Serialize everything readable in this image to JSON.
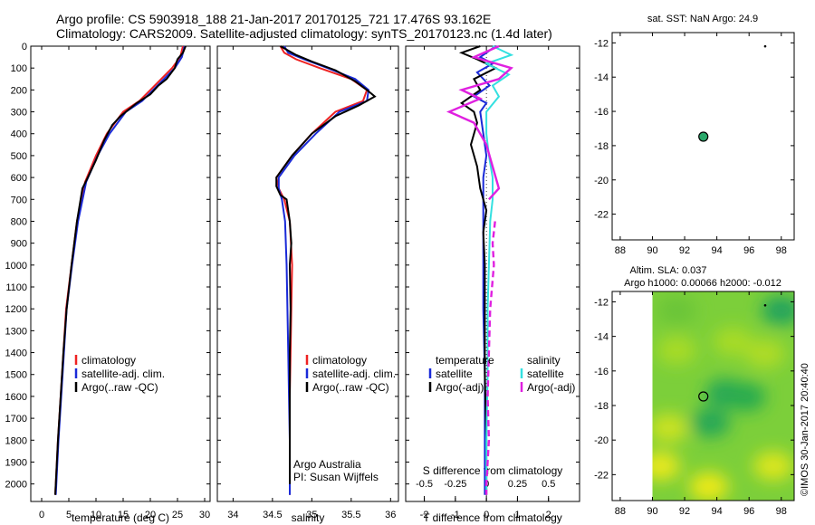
{
  "header": {
    "line1": "Argo profile: CS 5903918_188 21-Jan-2017 20170125_721 17.476S 93.162E",
    "line2": "Climatology: CARS2009. Satellite-adjusted climatology: synTS_20170123.nc (1.4d later)"
  },
  "watermark": "©IMOS 30-Jan-2017 20:40:40",
  "colors": {
    "climatology": "#ee2222",
    "satellite": "#1a2ad8",
    "argo": "#000000",
    "sat_cyan": "#33e0e0",
    "argo_magenta": "#e020e0"
  },
  "chart_data": [
    {
      "id": "temperature",
      "type": "line",
      "xlabel": "temperature (deg C)",
      "xlim": [
        -2,
        31
      ],
      "xticks": [
        0,
        5,
        10,
        15,
        20,
        25,
        30
      ],
      "ylim": [
        0,
        2080
      ],
      "yticks": [
        0,
        100,
        200,
        300,
        400,
        500,
        600,
        700,
        800,
        900,
        1000,
        1100,
        1200,
        1300,
        1400,
        1500,
        1600,
        1700,
        1800,
        1900,
        2000
      ],
      "legend": [
        "climatology",
        "satellite-adj. clim.",
        "Argo(..raw -QC)"
      ],
      "series": [
        {
          "name": "climatology",
          "color": "#ee2222",
          "points": [
            [
              26.0,
              0
            ],
            [
              25.5,
              50
            ],
            [
              24,
              100
            ],
            [
              22,
              150
            ],
            [
              20,
              200
            ],
            [
              18,
              250
            ],
            [
              15,
              300
            ],
            [
              12,
              400
            ],
            [
              10,
              500
            ],
            [
              8,
              620
            ],
            [
              6.5,
              800
            ],
            [
              5.5,
              1000
            ],
            [
              4.5,
              1200
            ],
            [
              4.0,
              1400
            ],
            [
              3.5,
              1600
            ],
            [
              3.0,
              1800
            ],
            [
              2.6,
              2000
            ],
            [
              2.5,
              2050
            ]
          ]
        },
        {
          "name": "satellite-adj. clim.",
          "color": "#1a2ad8",
          "points": [
            [
              26.3,
              0
            ],
            [
              25.8,
              50
            ],
            [
              24.5,
              100
            ],
            [
              22.5,
              150
            ],
            [
              20.5,
              200
            ],
            [
              18.5,
              250
            ],
            [
              15.5,
              300
            ],
            [
              12.5,
              400
            ],
            [
              10.3,
              500
            ],
            [
              8.2,
              620
            ],
            [
              6.7,
              800
            ],
            [
              5.6,
              1000
            ],
            [
              4.6,
              1200
            ],
            [
              4.1,
              1400
            ],
            [
              3.6,
              1600
            ],
            [
              3.1,
              1800
            ],
            [
              2.7,
              2000
            ],
            [
              2.6,
              2050
            ]
          ]
        },
        {
          "name": "Argo(..raw -QC)",
          "color": "#000000",
          "points": [
            [
              26.5,
              0
            ],
            [
              26.0,
              30
            ],
            [
              25.0,
              60
            ],
            [
              24.5,
              100
            ],
            [
              23,
              150
            ],
            [
              21.5,
              180
            ],
            [
              20,
              220
            ],
            [
              17.5,
              260
            ],
            [
              14.5,
              320
            ],
            [
              13,
              360
            ],
            [
              11.5,
              430
            ],
            [
              10,
              520
            ],
            [
              8.5,
              600
            ],
            [
              7.5,
              650
            ],
            [
              6.5,
              800
            ],
            [
              5.5,
              1000
            ],
            [
              4.6,
              1200
            ],
            [
              4.0,
              1400
            ],
            [
              3.5,
              1600
            ],
            [
              3.0,
              1800
            ],
            [
              2.6,
              2000
            ],
            [
              2.5,
              2050
            ]
          ]
        }
      ]
    },
    {
      "id": "salinity",
      "type": "line",
      "xlabel": "salinity",
      "xlim": [
        33.8,
        36.1
      ],
      "xticks": [
        34,
        34.5,
        35,
        35.5,
        36
      ],
      "ylim": [
        0,
        2080
      ],
      "legend": [
        "climatology",
        "satellite-adj. clim.",
        "Argo(..raw -QC)"
      ],
      "credit": [
        "Argo Australia",
        "PI: Susan Wijffels"
      ],
      "series": [
        {
          "name": "climatology",
          "color": "#ee2222",
          "points": [
            [
              34.6,
              0
            ],
            [
              34.65,
              30
            ],
            [
              34.8,
              60
            ],
            [
              35.1,
              100
            ],
            [
              35.5,
              150
            ],
            [
              35.7,
              200
            ],
            [
              35.65,
              250
            ],
            [
              35.3,
              300
            ],
            [
              35.0,
              400
            ],
            [
              34.75,
              500
            ],
            [
              34.55,
              600
            ],
            [
              34.58,
              650
            ],
            [
              34.65,
              700
            ],
            [
              34.72,
              800
            ],
            [
              34.75,
              1000
            ],
            [
              34.74,
              1200
            ],
            [
              34.73,
              1400
            ],
            [
              34.72,
              1600
            ],
            [
              34.72,
              1800
            ],
            [
              34.72,
              2000
            ],
            [
              34.72,
              2050
            ]
          ]
        },
        {
          "name": "satellite-adj. clim.",
          "color": "#1a2ad8",
          "points": [
            [
              34.65,
              0
            ],
            [
              34.7,
              30
            ],
            [
              34.9,
              60
            ],
            [
              35.2,
              100
            ],
            [
              35.55,
              150
            ],
            [
              35.72,
              200
            ],
            [
              35.7,
              250
            ],
            [
              35.35,
              300
            ],
            [
              35.05,
              400
            ],
            [
              34.78,
              500
            ],
            [
              34.58,
              600
            ],
            [
              34.58,
              650
            ],
            [
              34.62,
              700
            ],
            [
              34.66,
              800
            ],
            [
              34.68,
              1000
            ],
            [
              34.69,
              1200
            ],
            [
              34.7,
              1400
            ],
            [
              34.71,
              1600
            ],
            [
              34.72,
              1800
            ],
            [
              34.72,
              2000
            ],
            [
              34.72,
              2050
            ]
          ]
        },
        {
          "name": "Argo(..raw -QC)",
          "color": "#000000",
          "points": [
            [
              34.6,
              0
            ],
            [
              34.8,
              40
            ],
            [
              35.0,
              70
            ],
            [
              35.3,
              110
            ],
            [
              35.55,
              160
            ],
            [
              35.7,
              200
            ],
            [
              35.8,
              230
            ],
            [
              35.6,
              270
            ],
            [
              35.3,
              320
            ],
            [
              35.0,
              400
            ],
            [
              34.75,
              500
            ],
            [
              34.55,
              600
            ],
            [
              34.55,
              640
            ],
            [
              34.6,
              680
            ],
            [
              34.68,
              700
            ],
            [
              34.72,
              800
            ],
            [
              34.74,
              900
            ],
            [
              34.72,
              1000
            ],
            [
              34.73,
              1200
            ],
            [
              34.72,
              1400
            ],
            [
              34.72,
              1600
            ],
            [
              34.72,
              1800
            ],
            [
              34.72,
              2000
            ]
          ]
        }
      ]
    },
    {
      "id": "difference",
      "type": "line",
      "xlabel": "T difference from climatology",
      "xlabel_top": "S difference from climatology",
      "xlim": [
        -2.6,
        3.0
      ],
      "xticks": [
        -2,
        -1,
        0,
        1,
        2
      ],
      "xticks_top_values": [
        -0.5,
        -0.25,
        0,
        0.25,
        0.5
      ],
      "xticks_top_labels": [
        "-0.5",
        "-0.25",
        "0",
        "0.25",
        "0.5"
      ],
      "ylim": [
        0,
        2080
      ],
      "legend_left_title": "temperature",
      "legend_left": [
        "satellite",
        "Argo(-adj)"
      ],
      "legend_right_title": "salinity",
      "legend_right": [
        "satellite",
        "Argo(-adj)"
      ],
      "series": [
        {
          "name": "temperature satellite",
          "color": "#1a2ad8",
          "points": [
            [
              0.3,
              0
            ],
            [
              -0.2,
              50
            ],
            [
              0.2,
              80
            ],
            [
              -0.3,
              120
            ],
            [
              0.1,
              180
            ],
            [
              -0.4,
              230
            ],
            [
              0.0,
              260
            ],
            [
              -0.2,
              300
            ],
            [
              -0.1,
              400
            ],
            [
              0.0,
              500
            ],
            [
              -0.1,
              600
            ],
            [
              -0.1,
              700
            ],
            [
              -0.1,
              800
            ],
            [
              -0.1,
              1000
            ],
            [
              -0.1,
              1200
            ],
            [
              -0.05,
              1500
            ],
            [
              -0.05,
              1800
            ],
            [
              -0.05,
              2050
            ]
          ]
        },
        {
          "name": "temperature Argo(-adj)",
          "color": "#000000",
          "points": [
            [
              -0.2,
              0
            ],
            [
              -0.8,
              30
            ],
            [
              -0.3,
              60
            ],
            [
              0.3,
              100
            ],
            [
              -0.4,
              150
            ],
            [
              -0.2,
              200
            ],
            [
              -0.8,
              260
            ],
            [
              -0.4,
              300
            ],
            [
              -0.3,
              350
            ],
            [
              -0.5,
              450
            ],
            [
              -0.3,
              550
            ],
            [
              -0.2,
              650
            ],
            [
              0.0,
              750
            ],
            [
              -0.1,
              850
            ],
            [
              -0.05,
              1000
            ],
            [
              -0.05,
              1200
            ],
            [
              -0.05,
              1500
            ],
            [
              0.0,
              1800
            ],
            [
              0.0,
              2050
            ]
          ]
        },
        {
          "name": "salinity satellite",
          "color": "#33e0e0",
          "points": [
            [
              0.05,
              0
            ],
            [
              0.2,
              40
            ],
            [
              0.0,
              80
            ],
            [
              0.18,
              130
            ],
            [
              0.05,
              180
            ],
            [
              0.1,
              230
            ],
            [
              0.0,
              300
            ],
            [
              0.0,
              400
            ],
            [
              0.02,
              500
            ],
            [
              0.05,
              600
            ],
            [
              0.05,
              700
            ],
            [
              0.03,
              800
            ],
            [
              0.02,
              1000
            ],
            [
              0.01,
              1200
            ],
            [
              0.01,
              1500
            ],
            [
              0.0,
              1800
            ],
            [
              0.0,
              2050
            ]
          ]
        },
        {
          "name": "salinity Argo(-adj)",
          "color": "#e020e0",
          "dashed_below": 780,
          "points": [
            [
              0.1,
              0
            ],
            [
              -0.1,
              50
            ],
            [
              0.2,
              100
            ],
            [
              0.1,
              150
            ],
            [
              -0.2,
              200
            ],
            [
              -0.05,
              240
            ],
            [
              -0.3,
              300
            ],
            [
              -0.1,
              350
            ],
            [
              0.0,
              450
            ],
            [
              0.05,
              550
            ],
            [
              0.1,
              650
            ],
            [
              0.02,
              700
            ],
            [
              0.07,
              800
            ],
            [
              0.05,
              900
            ],
            [
              0.06,
              1000
            ],
            [
              0.03,
              1200
            ],
            [
              0.02,
              1400
            ],
            [
              0.01,
              1600
            ],
            [
              0.02,
              1800
            ],
            [
              0.0,
              2000
            ],
            [
              0.0,
              2050
            ]
          ]
        }
      ]
    },
    {
      "id": "sst_map",
      "type": "scatter",
      "title": "sat. SST: NaN Argo: 24.9",
      "xlim": [
        87.5,
        98.8
      ],
      "ylim": [
        -23.5,
        -11.4
      ],
      "xticks": [
        88,
        90,
        92,
        94,
        96,
        98
      ],
      "yticks": [
        -12,
        -14,
        -16,
        -18,
        -20,
        -22
      ],
      "points": [
        {
          "lon": 93.162,
          "lat": -17.476,
          "label": "Argo"
        }
      ],
      "small_dot": {
        "lon": 97.0,
        "lat": -12.2
      }
    },
    {
      "id": "sla_map",
      "type": "heatmap",
      "title_line1": "Altim. SLA: 0.037",
      "title_line2": "Argo h1000: 0.00066 h2000: -0.012",
      "xlim": [
        87.5,
        98.8
      ],
      "ylim": [
        -23.5,
        -11.4
      ],
      "xticks": [
        88,
        90,
        92,
        94,
        96,
        98
      ],
      "yticks": [
        -12,
        -14,
        -16,
        -18,
        -20,
        -22
      ],
      "data_lon_range": [
        90,
        98.8
      ],
      "points": [
        {
          "lon": 93.162,
          "lat": -17.476,
          "label": "Argo"
        }
      ],
      "small_dot": {
        "lon": 97.0,
        "lat": -12.2
      },
      "blobs": [
        {
          "lon": 94.5,
          "lat": -17.3,
          "level": 0.25
        },
        {
          "lon": 93.6,
          "lat": -19.0,
          "level": 0.25
        },
        {
          "lon": 95.8,
          "lat": -17.5,
          "level": 0.3
        },
        {
          "lon": 98.0,
          "lat": -12.5,
          "level": 0.2
        },
        {
          "lon": 91.5,
          "lat": -14.8,
          "level": 0.6
        },
        {
          "lon": 95.0,
          "lat": -14.3,
          "level": 0.6
        },
        {
          "lon": 91.0,
          "lat": -19.3,
          "level": 0.7
        },
        {
          "lon": 90.5,
          "lat": -21.5,
          "level": 0.85
        },
        {
          "lon": 93.5,
          "lat": -22.7,
          "level": 0.88
        },
        {
          "lon": 97.5,
          "lat": -21.5,
          "level": 0.75
        },
        {
          "lon": 97.0,
          "lat": -15.0,
          "level": 0.62
        },
        {
          "lon": 91.5,
          "lat": -12.5,
          "level": 0.45
        }
      ]
    }
  ]
}
